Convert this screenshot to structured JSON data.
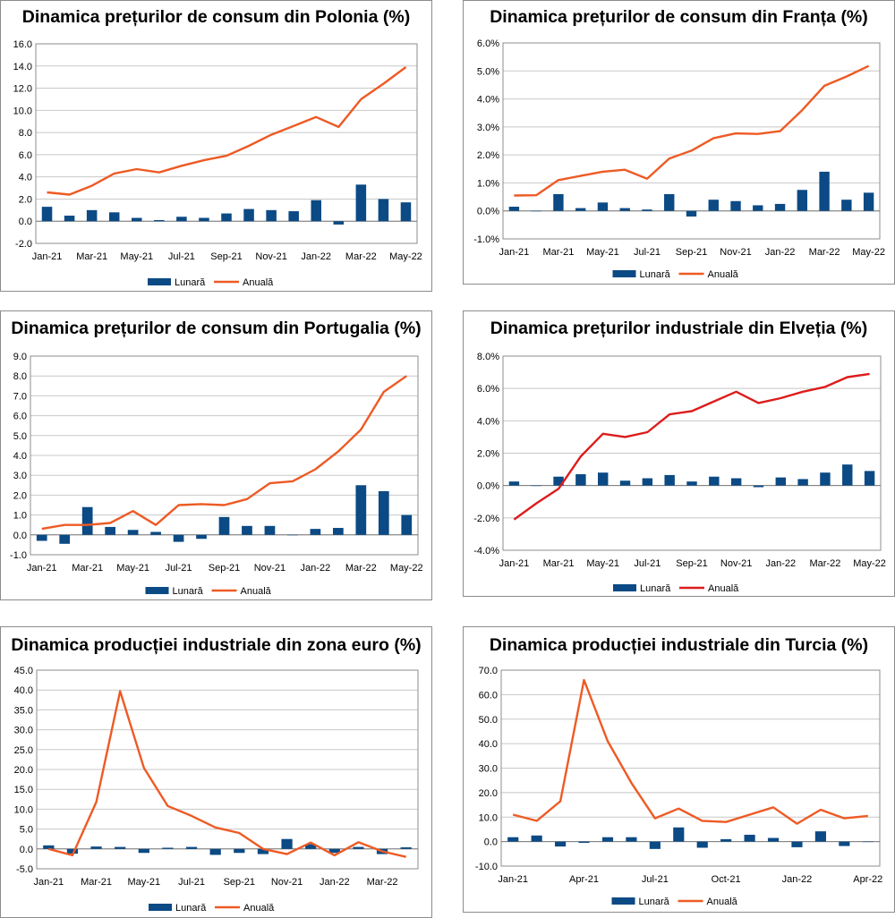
{
  "colors": {
    "bar": "#0b4a84",
    "line_orange": "#ee5a24",
    "line_red": "#dd1c1c",
    "grid": "#c8c8c8",
    "frame": "#8c8c8c"
  },
  "chart_data": [
    {
      "type": "bar+line",
      "title": "Dinamica prețurilor de consum din Polonia (%)",
      "categories": [
        "Jan-21",
        "Feb-21",
        "Mar-21",
        "Apr-21",
        "May-21",
        "Jun-21",
        "Jul-21",
        "Aug-21",
        "Sep-21",
        "Oct-21",
        "Nov-21",
        "Dec-21",
        "Jan-22",
        "Feb-22",
        "Mar-22",
        "Apr-22",
        "May-22"
      ],
      "x_tick_labels": [
        "Jan-21",
        "Mar-21",
        "May-21",
        "Jul-21",
        "Sep-21",
        "Nov-21",
        "Jan-22",
        "Mar-22",
        "May-22"
      ],
      "y_tick_labels": [
        "16.0",
        "14.0",
        "12.0",
        "10.0",
        "8.0",
        "6.0",
        "4.0",
        "2.0",
        "0.0",
        "-2.0"
      ],
      "ylim": [
        -2,
        16
      ],
      "y_step": 2,
      "series": [
        {
          "name": "Lunară",
          "kind": "bar",
          "values": [
            1.3,
            0.5,
            1.0,
            0.8,
            0.3,
            0.1,
            0.4,
            0.3,
            0.7,
            1.1,
            1.0,
            0.9,
            1.9,
            -0.3,
            3.3,
            2.0,
            1.7
          ]
        },
        {
          "name": "Anuală",
          "kind": "line",
          "values": [
            2.6,
            2.4,
            3.2,
            4.3,
            4.7,
            4.4,
            5.0,
            5.5,
            5.9,
            6.8,
            7.8,
            8.6,
            9.4,
            8.5,
            11.0,
            12.4,
            13.9
          ]
        }
      ],
      "legend": {
        "bar": "Lunară",
        "line": "Anuală"
      },
      "line_color": "orange",
      "legend_position": "bottom"
    },
    {
      "type": "bar+line",
      "title": "Dinamica prețurilor de consum din Franța (%)",
      "categories": [
        "Jan-21",
        "Feb-21",
        "Mar-21",
        "Apr-21",
        "May-21",
        "Jun-21",
        "Jul-21",
        "Aug-21",
        "Sep-21",
        "Oct-21",
        "Nov-21",
        "Dec-21",
        "Jan-22",
        "Feb-22",
        "Mar-22",
        "Apr-22",
        "May-22"
      ],
      "x_tick_labels": [
        "Jan-21",
        "Mar-21",
        "May-21",
        "Jul-21",
        "Sep-21",
        "Nov-21",
        "Jan-22",
        "Mar-22",
        "May-22"
      ],
      "y_tick_labels": [
        "6.0%",
        "5.0%",
        "4.0%",
        "3.0%",
        "2.0%",
        "1.0%",
        "0.0%",
        "-1.0%"
      ],
      "ylim": [
        -1,
        6
      ],
      "y_step": 1,
      "series": [
        {
          "name": "Lunară",
          "kind": "bar",
          "values": [
            0.15,
            0.0,
            0.6,
            0.1,
            0.3,
            0.1,
            0.05,
            0.6,
            -0.2,
            0.4,
            0.35,
            0.2,
            0.25,
            0.75,
            1.4,
            0.4,
            0.65
          ]
        },
        {
          "name": "Anuală",
          "kind": "line",
          "values": [
            0.55,
            0.56,
            1.1,
            1.25,
            1.4,
            1.47,
            1.15,
            1.87,
            2.15,
            2.6,
            2.77,
            2.75,
            2.85,
            3.6,
            4.47,
            4.8,
            5.18
          ]
        }
      ],
      "legend": {
        "bar": "Lunară",
        "line": "Anuală"
      },
      "line_color": "orange",
      "legend_position": "bottom"
    },
    {
      "type": "bar+line",
      "title": "Dinamica prețurilor de consum din Portugalia (%)",
      "categories": [
        "Jan-21",
        "Feb-21",
        "Mar-21",
        "Apr-21",
        "May-21",
        "Jun-21",
        "Jul-21",
        "Aug-21",
        "Sep-21",
        "Oct-21",
        "Nov-21",
        "Dec-21",
        "Jan-22",
        "Feb-22",
        "Mar-22",
        "Apr-22",
        "May-22"
      ],
      "x_tick_labels": [
        "Jan-21",
        "Mar-21",
        "May-21",
        "Jul-21",
        "Sep-21",
        "Nov-21",
        "Jan-22",
        "Mar-22",
        "May-22"
      ],
      "y_tick_labels": [
        "9.0",
        "8.0",
        "7.0",
        "6.0",
        "5.0",
        "4.0",
        "3.0",
        "2.0",
        "1.0",
        "0.0",
        "-1.0"
      ],
      "ylim": [
        -1,
        9
      ],
      "y_step": 1,
      "series": [
        {
          "name": "Lunară",
          "kind": "bar",
          "values": [
            -0.3,
            -0.45,
            1.4,
            0.4,
            0.25,
            0.15,
            -0.35,
            -0.2,
            0.9,
            0.45,
            0.45,
            0.0,
            0.3,
            0.35,
            2.5,
            2.2,
            1.0
          ]
        },
        {
          "name": "Anuală",
          "kind": "line",
          "values": [
            0.3,
            0.5,
            0.5,
            0.6,
            1.2,
            0.5,
            1.5,
            1.55,
            1.5,
            1.8,
            2.6,
            2.7,
            3.3,
            4.2,
            5.3,
            7.2,
            8.0
          ]
        }
      ],
      "legend": {
        "bar": "Lunară",
        "line": "Anuală"
      },
      "line_color": "orange",
      "legend_position": "bottom"
    },
    {
      "type": "bar+line",
      "title": "Dinamica prețurilor industriale din Elveția (%)",
      "categories": [
        "Jan-21",
        "Feb-21",
        "Mar-21",
        "Apr-21",
        "May-21",
        "Jun-21",
        "Jul-21",
        "Aug-21",
        "Sep-21",
        "Oct-21",
        "Nov-21",
        "Dec-21",
        "Jan-22",
        "Feb-22",
        "Mar-22",
        "Apr-22",
        "May-22"
      ],
      "x_tick_labels": [
        "Jan-21",
        "Mar-21",
        "May-21",
        "Jul-21",
        "Sep-21",
        "Nov-21",
        "Jan-22",
        "Mar-22",
        "May-22"
      ],
      "y_tick_labels": [
        "8.0%",
        "6.0%",
        "4.0%",
        "2.0%",
        "0.0%",
        "-2.0%",
        "-4.0%"
      ],
      "ylim": [
        -4,
        8
      ],
      "y_step": 2,
      "series": [
        {
          "name": "Lunară",
          "kind": "bar",
          "values": [
            0.25,
            0.0,
            0.55,
            0.7,
            0.8,
            0.3,
            0.45,
            0.65,
            0.25,
            0.55,
            0.45,
            -0.1,
            0.5,
            0.4,
            0.8,
            1.3,
            0.9
          ]
        },
        {
          "name": "Anuală",
          "kind": "line",
          "values": [
            -2.1,
            -1.1,
            -0.2,
            1.8,
            3.2,
            3.0,
            3.3,
            4.4,
            4.6,
            5.2,
            5.8,
            5.1,
            5.4,
            5.8,
            6.1,
            6.7,
            6.9
          ]
        }
      ],
      "legend": {
        "bar": "Lunară",
        "line": "Anuală"
      },
      "line_color": "red",
      "legend_position": "bottom"
    },
    {
      "type": "bar+line",
      "title": "Dinamica producției industriale din zona euro (%)",
      "categories": [
        "Jan-21",
        "Feb-21",
        "Mar-21",
        "Apr-21",
        "May-21",
        "Jun-21",
        "Jul-21",
        "Aug-21",
        "Sep-21",
        "Oct-21",
        "Nov-21",
        "Dec-21",
        "Jan-22",
        "Feb-22",
        "Mar-22",
        "Apr-22"
      ],
      "x_tick_labels": [
        "Jan-21",
        "Mar-21",
        "May-21",
        "Jul-21",
        "Sep-21",
        "Nov-21",
        "Jan-22",
        "Mar-22"
      ],
      "y_tick_labels": [
        "45.0",
        "40.0",
        "35.0",
        "30.0",
        "25.0",
        "20.0",
        "15.0",
        "10.0",
        "5.0",
        "0.0",
        "-5.0"
      ],
      "ylim": [
        -5,
        45
      ],
      "y_step": 5,
      "series": [
        {
          "name": "Lunară",
          "kind": "bar",
          "values": [
            0.9,
            -1.2,
            0.6,
            0.5,
            -1.0,
            0.3,
            0.5,
            -1.5,
            -1.0,
            -1.3,
            2.5,
            1.2,
            -1.0,
            0.5,
            -1.3,
            0.4
          ]
        },
        {
          "name": "Anuală",
          "kind": "line",
          "values": [
            0.0,
            -1.6,
            11.8,
            39.7,
            20.4,
            10.8,
            8.3,
            5.4,
            4.0,
            0.0,
            -1.3,
            1.6,
            -1.6,
            1.7,
            -0.6,
            -2.0
          ]
        }
      ],
      "legend": {
        "bar": "Lunară",
        "line": "Anuală"
      },
      "line_color": "orange",
      "legend_position": "bottom"
    },
    {
      "type": "bar+line",
      "title": "Dinamica producției industriale din Turcia (%)",
      "categories": [
        "Jan-21",
        "Feb-21",
        "Mar-21",
        "Apr-21",
        "May-21",
        "Jun-21",
        "Jul-21",
        "Aug-21",
        "Sep-21",
        "Oct-21",
        "Nov-21",
        "Dec-21",
        "Jan-22",
        "Feb-22",
        "Mar-22",
        "Apr-22"
      ],
      "x_tick_labels": [
        "Jan-21",
        "Apr-21",
        "Jul-21",
        "Oct-21",
        "Jan-22",
        "Apr-22"
      ],
      "x_tick_every": 3,
      "y_tick_labels": [
        "70.0",
        "60.0",
        "50.0",
        "40.0",
        "30.0",
        "20.0",
        "10.0",
        "0.0",
        "-10.0"
      ],
      "ylim": [
        -10,
        70
      ],
      "y_step": 10,
      "series": [
        {
          "name": "Lunară",
          "kind": "bar",
          "values": [
            1.8,
            2.5,
            -2.0,
            -0.5,
            1.8,
            1.8,
            -3.0,
            5.8,
            -2.5,
            1.0,
            2.8,
            1.5,
            -2.3,
            4.2,
            -1.8,
            0.0
          ]
        },
        {
          "name": "Anuală",
          "kind": "line",
          "values": [
            11.0,
            8.5,
            16.5,
            66.0,
            41.0,
            24.0,
            9.5,
            13.5,
            8.5,
            8.0,
            11.0,
            14.0,
            7.3,
            13.0,
            9.5,
            10.5
          ]
        }
      ],
      "legend": {
        "bar": "Lunară",
        "line": "Anuală"
      },
      "line_color": "orange",
      "legend_position": "bottom"
    }
  ]
}
